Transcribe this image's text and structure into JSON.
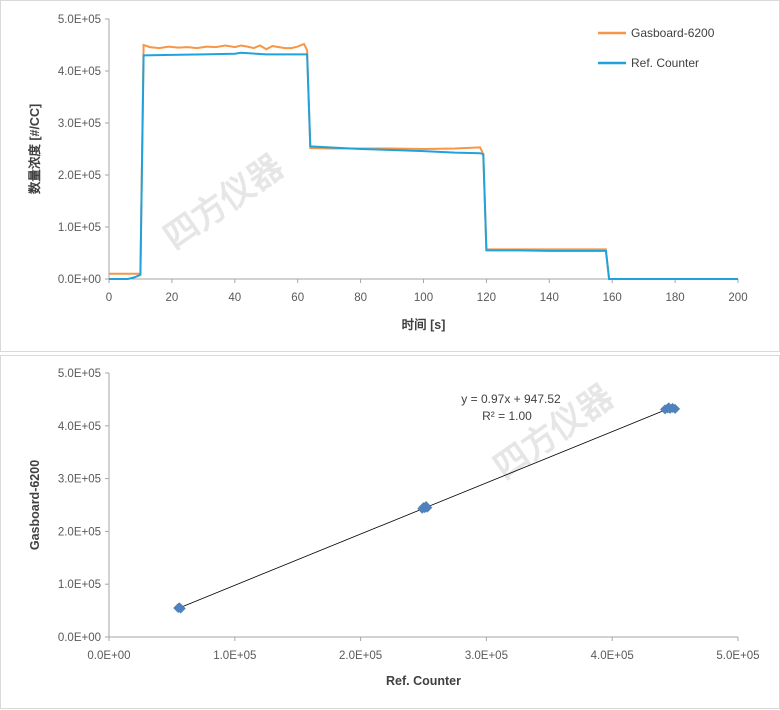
{
  "watermark": "四方仪器",
  "chart_data": [
    {
      "type": "line",
      "title": "",
      "xlabel": "时间 [s]",
      "ylabel": "数量浓度 [#/CC]",
      "xlim": [
        0,
        200
      ],
      "ylim": [
        0,
        500000
      ],
      "xticks": [
        "0",
        "20",
        "40",
        "60",
        "80",
        "100",
        "120",
        "140",
        "160",
        "180",
        "200"
      ],
      "yticks": [
        "0.0E+00",
        "1.0E+05",
        "2.0E+05",
        "3.0E+05",
        "4.0E+05",
        "5.0E+05"
      ],
      "legend_position": "top-right",
      "grid": false,
      "series": [
        {
          "name": "Gasboard-6200",
          "color": "#f79646",
          "points": [
            [
              0,
              10000
            ],
            [
              10,
              10000
            ],
            [
              11,
              450000
            ],
            [
              13,
              446000
            ],
            [
              16,
              444000
            ],
            [
              19,
              447000
            ],
            [
              22,
              445000
            ],
            [
              25,
              446000
            ],
            [
              28,
              444000
            ],
            [
              31,
              447000
            ],
            [
              34,
              446000
            ],
            [
              37,
              449000
            ],
            [
              40,
              446000
            ],
            [
              42,
              449000
            ],
            [
              44,
              447000
            ],
            [
              46,
              444000
            ],
            [
              48,
              449000
            ],
            [
              50,
              442000
            ],
            [
              52,
              448000
            ],
            [
              54,
              446000
            ],
            [
              56,
              444000
            ],
            [
              58,
              444000
            ],
            [
              60,
              447000
            ],
            [
              62,
              452000
            ],
            [
              63,
              440000
            ],
            [
              64,
              252000
            ],
            [
              70,
              251000
            ],
            [
              80,
              251000
            ],
            [
              90,
              251000
            ],
            [
              100,
              250000
            ],
            [
              110,
              251000
            ],
            [
              118,
              253000
            ],
            [
              119,
              240000
            ],
            [
              120,
              57000
            ],
            [
              130,
              57000
            ],
            [
              140,
              57000
            ],
            [
              150,
              57000
            ],
            [
              158,
              57000
            ],
            [
              159,
              0
            ],
            [
              200,
              0
            ]
          ]
        },
        {
          "name": "Ref. Counter",
          "color": "#1fa3dc",
          "points": [
            [
              0,
              0
            ],
            [
              6,
              0
            ],
            [
              8,
              3000
            ],
            [
              10,
              8000
            ],
            [
              11,
              430000
            ],
            [
              20,
              431000
            ],
            [
              30,
              432000
            ],
            [
              40,
              433000
            ],
            [
              42,
              435000
            ],
            [
              50,
              432000
            ],
            [
              60,
              432000
            ],
            [
              63,
              432000
            ],
            [
              64,
              255000
            ],
            [
              70,
              253000
            ],
            [
              80,
              250000
            ],
            [
              90,
              248000
            ],
            [
              100,
              246000
            ],
            [
              110,
              243000
            ],
            [
              118,
              242000
            ],
            [
              119,
              240000
            ],
            [
              120,
              55000
            ],
            [
              130,
              55000
            ],
            [
              140,
              54000
            ],
            [
              150,
              54000
            ],
            [
              158,
              54000
            ],
            [
              159,
              0
            ],
            [
              200,
              0
            ]
          ]
        }
      ]
    },
    {
      "type": "scatter",
      "title": "",
      "xlabel": "Ref. Counter",
      "ylabel": "Gasboard-6200",
      "xlim": [
        0,
        500000
      ],
      "ylim": [
        0,
        500000
      ],
      "xticks": [
        "0.0E+00",
        "1.0E+05",
        "2.0E+05",
        "3.0E+05",
        "4.0E+05",
        "5.0E+05"
      ],
      "yticks": [
        "0.0E+00",
        "1.0E+05",
        "2.0E+05",
        "3.0E+05",
        "4.0E+05",
        "5.0E+05"
      ],
      "grid": false,
      "marker_color": "#4f81bd",
      "points": [
        [
          55000,
          55000
        ],
        [
          56000,
          56000
        ],
        [
          57000,
          54000
        ],
        [
          249000,
          243000
        ],
        [
          250000,
          246000
        ],
        [
          251000,
          244000
        ],
        [
          252000,
          248000
        ],
        [
          253000,
          245000
        ],
        [
          442000,
          431000
        ],
        [
          444000,
          433000
        ],
        [
          446000,
          432000
        ],
        [
          448000,
          434000
        ],
        [
          450000,
          432000
        ],
        [
          445000,
          435000
        ]
      ],
      "trendline": {
        "slope": 0.97,
        "intercept": 947.52,
        "x_range": [
          56000,
          449000
        ],
        "color": "#000000"
      },
      "equation": "y = 0.97x + 947.52",
      "r_squared": "R² = 1.00"
    }
  ]
}
